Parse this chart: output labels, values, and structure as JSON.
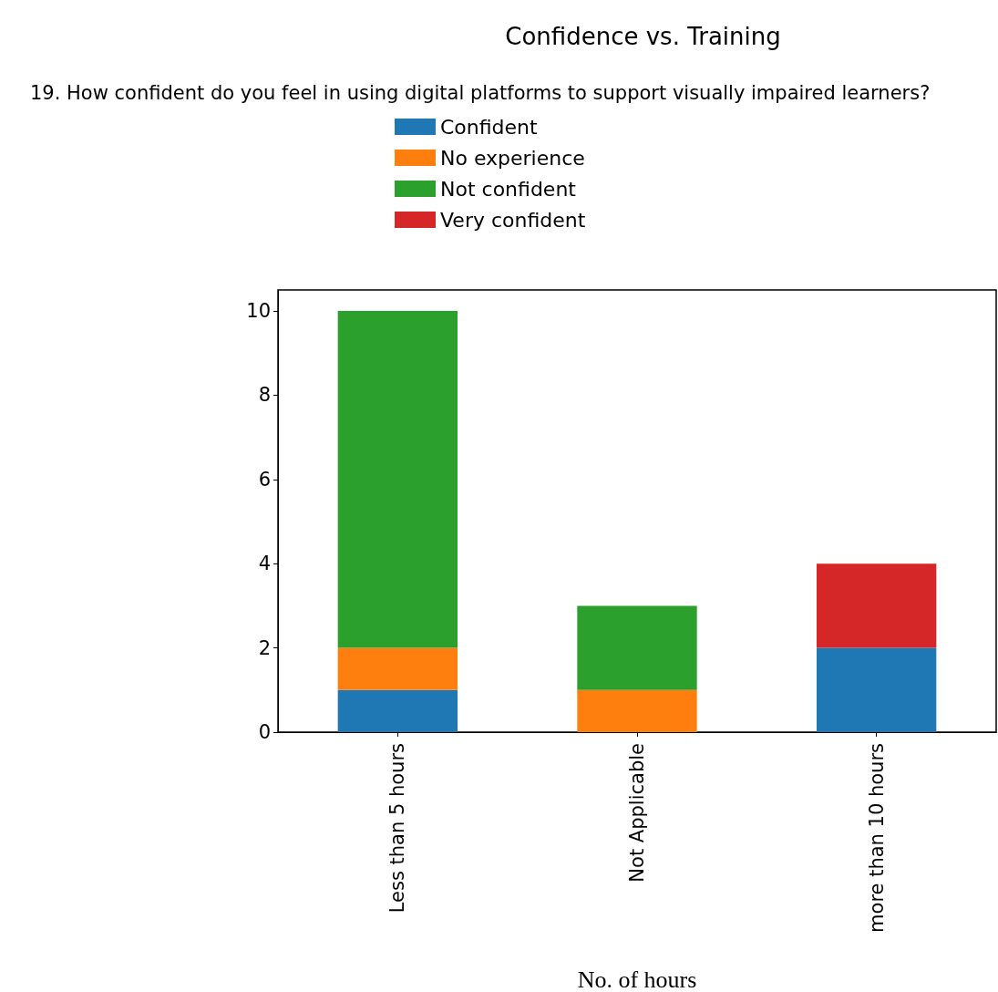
{
  "chart_data": {
    "type": "bar",
    "title": "Confidence vs. Training",
    "xlabel": "No. of hours",
    "legend_title": "19. How confident do you feel in using digital platforms to support visually impaired learners?",
    "categories": [
      "Less than 5 hours",
      "Not Applicable",
      "more than 10 hours"
    ],
    "stacked": true,
    "series": [
      {
        "name": "Confident",
        "color": "#1f77b4",
        "values": [
          1,
          0,
          2
        ]
      },
      {
        "name": "No experience",
        "color": "#ff7f0e",
        "values": [
          1,
          1,
          0
        ]
      },
      {
        "name": "Not confident",
        "color": "#2ca02c",
        "values": [
          8,
          2,
          0
        ]
      },
      {
        "name": "Very confident",
        "color": "#d62728",
        "values": [
          0,
          0,
          2
        ]
      }
    ],
    "ylim": [
      0,
      10.5
    ],
    "yticks": [
      0,
      2,
      4,
      6,
      8,
      10
    ],
    "grid": false,
    "legend": "top"
  }
}
